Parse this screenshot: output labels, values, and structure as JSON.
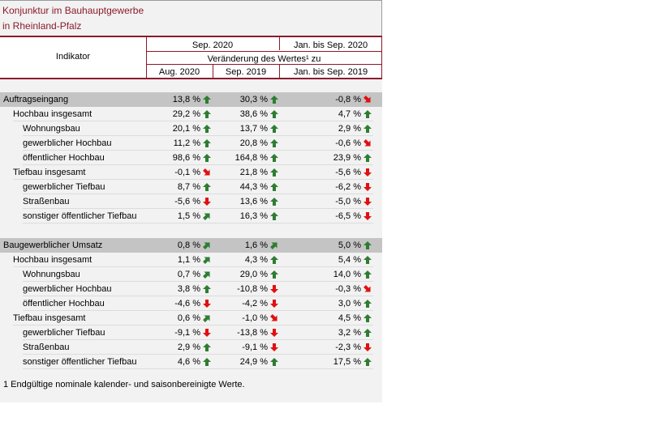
{
  "title": {
    "line1": "Konjunktur im Bauhauptgewerbe",
    "line2": "in Rheinland-Pfalz"
  },
  "header": {
    "indicator": "Indikator",
    "period_sep": "Sep. 2020",
    "period_ytd": "Jan. bis Sep. 2020",
    "change_label": "Veränderung des Wertes¹ zu",
    "col1": "Aug. 2020",
    "col2": "Sep. 2019",
    "col3": "Jan. bis Sep. 2019"
  },
  "colors": {
    "up": "#2e7d32",
    "down": "#e01010",
    "brand": "#8b1a2c",
    "section_bg": "#c4c4c4"
  },
  "sections": [
    {
      "rows": [
        {
          "label": "Auftragseingang",
          "level": 0,
          "v1": "13,8 %",
          "a1": "up",
          "v2": "30,3 %",
          "a2": "up",
          "v3": "-0,8 %",
          "a3": "down-right"
        },
        {
          "label": "Hochbau insgesamt",
          "level": 1,
          "v1": "29,2 %",
          "a1": "up",
          "v2": "38,6 %",
          "a2": "up",
          "v3": "4,7 %",
          "a3": "up"
        },
        {
          "label": "Wohnungsbau",
          "level": 2,
          "v1": "20,1 %",
          "a1": "up",
          "v2": "13,7 %",
          "a2": "up",
          "v3": "2,9 %",
          "a3": "up"
        },
        {
          "label": "gewerblicher Hochbau",
          "level": 2,
          "v1": "11,2 %",
          "a1": "up",
          "v2": "20,8 %",
          "a2": "up",
          "v3": "-0,6 %",
          "a3": "down-right"
        },
        {
          "label": "öffentlicher Hochbau",
          "level": 2,
          "v1": "98,6 %",
          "a1": "up",
          "v2": "164,8 %",
          "a2": "up",
          "v3": "23,9 %",
          "a3": "up"
        },
        {
          "label": "Tiefbau insgesamt",
          "level": 1,
          "v1": "-0,1 %",
          "a1": "down-right",
          "v2": "21,8 %",
          "a2": "up",
          "v3": "-5,6 %",
          "a3": "down"
        },
        {
          "label": "gewerblicher Tiefbau",
          "level": 2,
          "v1": "8,7 %",
          "a1": "up",
          "v2": "44,3 %",
          "a2": "up",
          "v3": "-6,2 %",
          "a3": "down"
        },
        {
          "label": "Straßenbau",
          "level": 2,
          "v1": "-5,6 %",
          "a1": "down",
          "v2": "13,6 %",
          "a2": "up",
          "v3": "-5,0 %",
          "a3": "down"
        },
        {
          "label": "sonstiger öffentlicher Tiefbau",
          "level": 2,
          "v1": "1,5 %",
          "a1": "up-right",
          "v2": "16,3 %",
          "a2": "up",
          "v3": "-6,5 %",
          "a3": "down"
        }
      ]
    },
    {
      "rows": [
        {
          "label": "Baugewerblicher Umsatz",
          "level": 0,
          "v1": "0,8 %",
          "a1": "up-right",
          "v2": "1,6 %",
          "a2": "up-right",
          "v3": "5,0 %",
          "a3": "up"
        },
        {
          "label": "Hochbau insgesamt",
          "level": 1,
          "v1": "1,1 %",
          "a1": "up-right",
          "v2": "4,3 %",
          "a2": "up",
          "v3": "5,4 %",
          "a3": "up"
        },
        {
          "label": "Wohnungsbau",
          "level": 2,
          "v1": "0,7 %",
          "a1": "up-right",
          "v2": "29,0 %",
          "a2": "up",
          "v3": "14,0 %",
          "a3": "up"
        },
        {
          "label": "gewerblicher Hochbau",
          "level": 2,
          "v1": "3,8 %",
          "a1": "up",
          "v2": "-10,8 %",
          "a2": "down",
          "v3": "-0,3 %",
          "a3": "down-right"
        },
        {
          "label": "öffentlicher Hochbau",
          "level": 2,
          "v1": "-4,6 %",
          "a1": "down",
          "v2": "-4,2 %",
          "a2": "down",
          "v3": "3,0 %",
          "a3": "up"
        },
        {
          "label": "Tiefbau insgesamt",
          "level": 1,
          "v1": "0,6 %",
          "a1": "up-right",
          "v2": "-1,0 %",
          "a2": "down-right",
          "v3": "4,5 %",
          "a3": "up"
        },
        {
          "label": "gewerblicher Tiefbau",
          "level": 2,
          "v1": "-9,1 %",
          "a1": "down",
          "v2": "-13,8 %",
          "a2": "down",
          "v3": "3,2 %",
          "a3": "up"
        },
        {
          "label": "Straßenbau",
          "level": 2,
          "v1": "2,9 %",
          "a1": "up",
          "v2": "-9,1 %",
          "a2": "down",
          "v3": "-2,3 %",
          "a3": "down"
        },
        {
          "label": "sonstiger öffentlicher Tiefbau",
          "level": 2,
          "v1": "4,6 %",
          "a1": "up",
          "v2": "24,9 %",
          "a2": "up",
          "v3": "17,5 %",
          "a3": "up"
        }
      ]
    }
  ],
  "footnote": "1 Endgültige nominale kalender- und saisonbereinigte Werte."
}
